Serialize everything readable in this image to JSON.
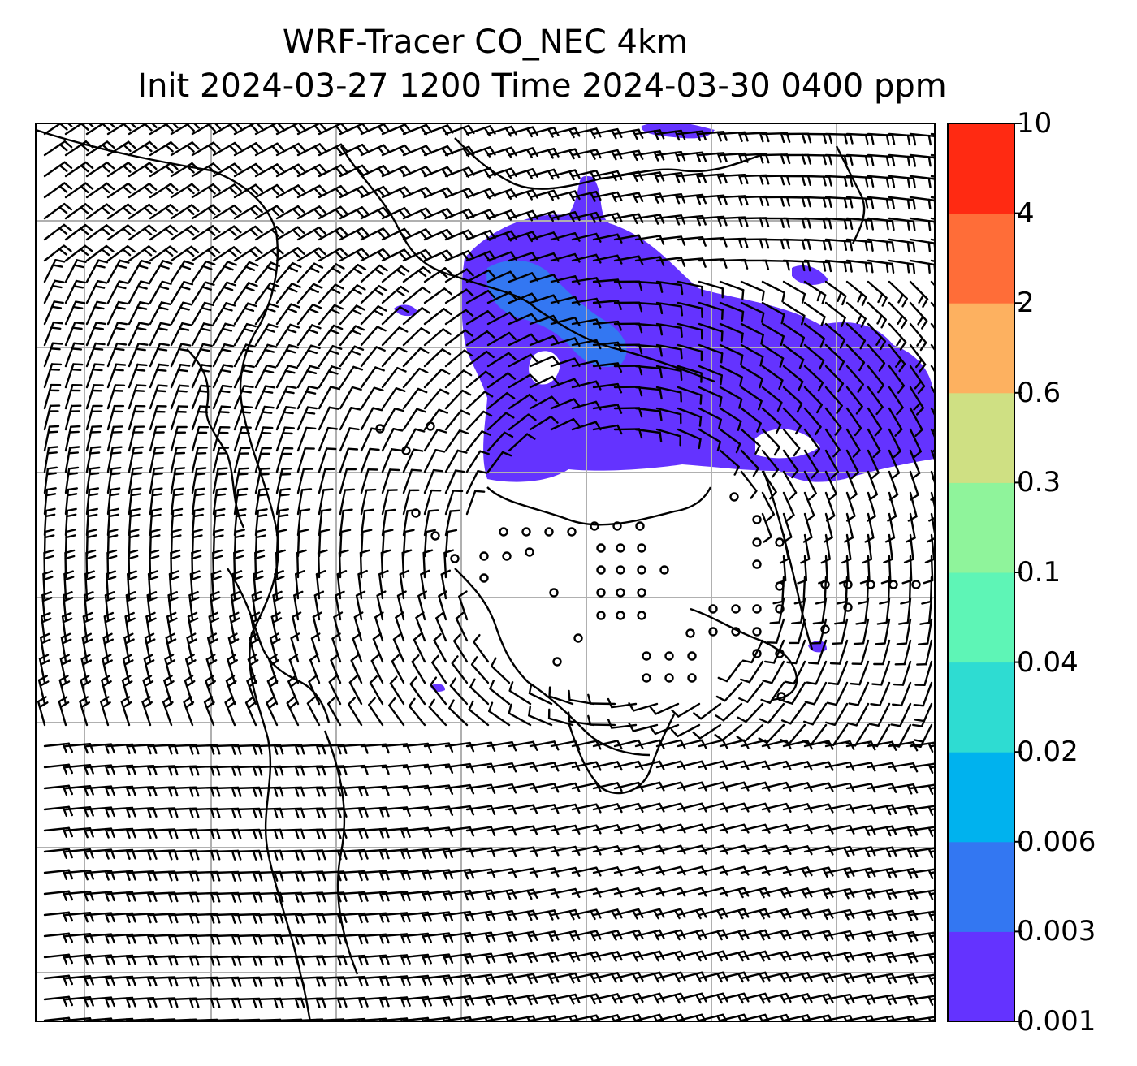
{
  "title": {
    "line1": "WRF-Tracer CO_NEC 4km",
    "line2": "Init 2024-03-27 1200 Time 2024-03-30 0400 ppm"
  },
  "colorbar": {
    "levels": [
      {
        "label": "0.001",
        "color": "#6433ff"
      },
      {
        "label": "0.003",
        "color": "#3377f2"
      },
      {
        "label": "0.006",
        "color": "#00b2ee"
      },
      {
        "label": "0.02",
        "color": "#2edcd2"
      },
      {
        "label": "0.04",
        "color": "#5ef5b6"
      },
      {
        "label": "0.1",
        "color": "#8ff49b"
      },
      {
        "label": "0.3",
        "color": "#cfe083"
      },
      {
        "label": "0.6",
        "color": "#fdb160"
      },
      {
        "label": "2",
        "color": "#ff6d38"
      },
      {
        "label": "4",
        "color": "#ff2a12"
      },
      {
        "label": "10",
        "color": ""
      }
    ]
  },
  "map": {
    "background_color": "#ffffff",
    "gridline_color": "#b0b0b0",
    "coastline_color": "#000000",
    "wind_barb_color": "#000000",
    "gridlines": true,
    "features": [
      "co-tracer-plume",
      "wind-barbs",
      "calm-wind-circles",
      "coastlines",
      "graticule"
    ]
  }
}
